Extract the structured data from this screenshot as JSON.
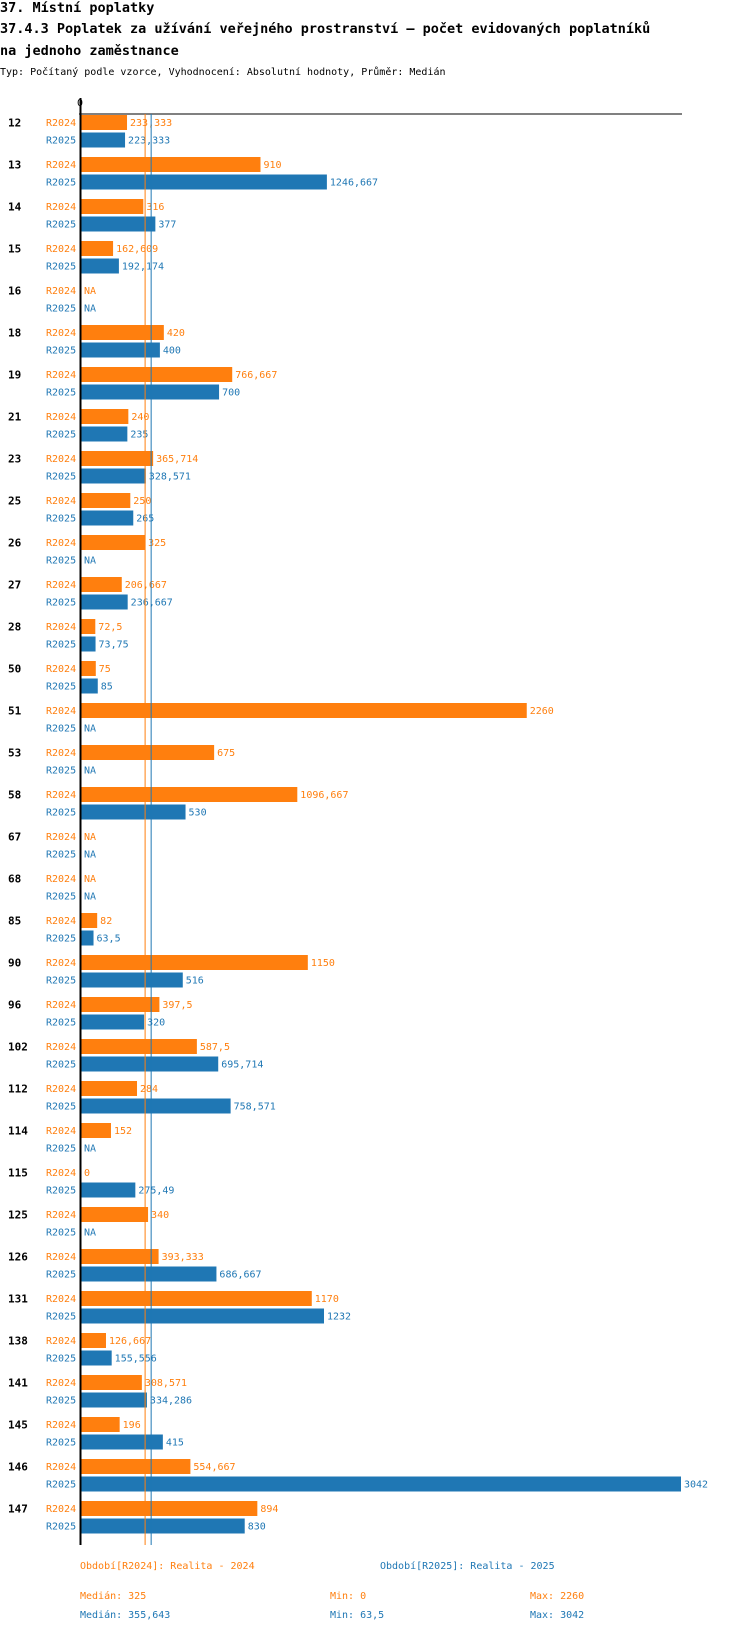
{
  "header": {
    "line1": "37. Místní poplatky",
    "line2": "37.4.3 Poplatek za užívání veřejného prostranství – počet evidovaných poplatníků",
    "line3": "na jednoho zaměstnance",
    "meta": "Typ: Počítaný podle vzorce, Vyhodnocení: Absolutní hodnoty, Průměr: Medián"
  },
  "colors": {
    "r2024": "#ff7f0e",
    "r2025": "#1f77b4"
  },
  "chart_data": {
    "type": "bar",
    "orientation": "horizontal",
    "axis_zero_label": "0",
    "xlim": [
      0,
      3042
    ],
    "categories": [
      "12",
      "13",
      "14",
      "15",
      "16",
      "18",
      "19",
      "21",
      "23",
      "25",
      "26",
      "27",
      "28",
      "50",
      "51",
      "53",
      "58",
      "67",
      "68",
      "85",
      "90",
      "96",
      "102",
      "112",
      "114",
      "115",
      "125",
      "126",
      "131",
      "138",
      "141",
      "145",
      "146",
      "147"
    ],
    "series": [
      {
        "name": "R2024",
        "color": "#ff7f0e",
        "values": [
          233.333,
          910,
          316,
          162.609,
          null,
          420,
          766.667,
          240,
          365.714,
          250,
          325,
          206.667,
          72.5,
          75,
          2260,
          675,
          1096.667,
          null,
          null,
          82,
          1150,
          397.5,
          587.5,
          284,
          152,
          0,
          340,
          393.333,
          1170,
          126.667,
          308.571,
          196,
          554.667,
          894
        ],
        "labels": [
          "233,333",
          "910",
          "316",
          "162,609",
          "NA",
          "420",
          "766,667",
          "240",
          "365,714",
          "250",
          "325",
          "206,667",
          "72,5",
          "75",
          "2260",
          "675",
          "1096,667",
          "NA",
          "NA",
          "82",
          "1150",
          "397,5",
          "587,5",
          "284",
          "152",
          "0",
          "340",
          "393,333",
          "1170",
          "126,667",
          "308,571",
          "196",
          "554,667",
          "894"
        ]
      },
      {
        "name": "R2025",
        "color": "#1f77b4",
        "values": [
          223.333,
          1246.667,
          377,
          192.174,
          null,
          400,
          700,
          235,
          328.571,
          265,
          null,
          236.667,
          73.75,
          85,
          null,
          null,
          530,
          null,
          null,
          63.5,
          516,
          320,
          695.714,
          758.571,
          null,
          275.49,
          null,
          686.667,
          1232,
          155.556,
          334.286,
          415,
          3042,
          830
        ],
        "labels": [
          "223,333",
          "1246,667",
          "377",
          "192,174",
          "NA",
          "400",
          "700",
          "235",
          "328,571",
          "265",
          "NA",
          "236,667",
          "73,75",
          "85",
          "NA",
          "NA",
          "530",
          "NA",
          "NA",
          "63,5",
          "516",
          "320",
          "695,714",
          "758,571",
          "NA",
          "275,49",
          "NA",
          "686,667",
          "1232",
          "155,556",
          "334,286",
          "415",
          "3042",
          "830"
        ]
      }
    ],
    "median_lines": [
      {
        "series": "R2024",
        "value": 325
      },
      {
        "series": "R2025",
        "value": 355.643
      }
    ]
  },
  "legend": {
    "r2024": {
      "period": "Období[R2024]: Realita - 2024",
      "median": "Medián: 325",
      "min": "Min: 0",
      "max": "Max: 2260"
    },
    "r2025": {
      "period": "Období[R2025]: Realita - 2025",
      "median": "Medián: 355,643",
      "min": "Min: 63,5",
      "max": "Max: 3042"
    }
  }
}
